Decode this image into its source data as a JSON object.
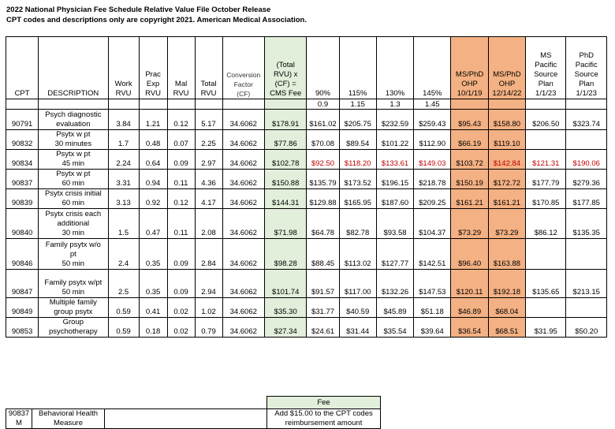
{
  "title_line1": "2022 National Physician Fee Schedule Relative Value File October Release",
  "title_line2": "CPT codes and descriptions only are copyright 2021. American Medical Association.",
  "headers": [
    [
      "CPT"
    ],
    [
      "DESCRIPTION"
    ],
    [
      "Work",
      "RVU"
    ],
    [
      "Prac",
      "Exp",
      "RVU"
    ],
    [
      "Mal",
      "RVU"
    ],
    [
      "Total",
      "RVU"
    ],
    [
      "Conversion",
      "Factor",
      "(CF)"
    ],
    [
      "(Total",
      "RVU) x",
      "(CF) =",
      "CMS Fee"
    ],
    [
      "90%"
    ],
    [
      "115%"
    ],
    [
      "130%"
    ],
    [
      "145%"
    ],
    [
      "MS/PhD",
      "OHP",
      "10/1/19"
    ],
    [
      "MS/PhD",
      "OHP",
      "12/14/22"
    ],
    [
      "MS",
      "Pacific",
      "Source",
      "Plan",
      "1/1/23"
    ],
    [
      "PhD",
      "Pacific",
      "Source",
      "Plan",
      "1/1/23"
    ]
  ],
  "multipliers": [
    "0.9",
    "1.15",
    "1.3",
    "1.45"
  ],
  "rows": [
    {
      "cpt": "90791",
      "desc": [
        "Psych diagnostic",
        "evaluation"
      ],
      "work": "3.84",
      "prac": "1.21",
      "mal": "0.12",
      "total": "5.17",
      "cf": "34.6062",
      "cms": "$178.91",
      "p90": "$161.02",
      "p115": "$205.75",
      "p130": "$232.59",
      "p145": "$259.43",
      "ohp19": "$95.43",
      "ohp22": "$158.80",
      "ms": "$206.50",
      "phd": "$323.74",
      "red": false
    },
    {
      "cpt": "90832",
      "desc": [
        "Psytx w pt",
        "30 minutes"
      ],
      "work": "1.7",
      "prac": "0.48",
      "mal": "0.07",
      "total": "2.25",
      "cf": "34.6062",
      "cms": "$77.86",
      "p90": "$70.08",
      "p115": "$89.54",
      "p130": "$101.22",
      "p145": "$112.90",
      "ohp19": "$66.19",
      "ohp22": "$119.10",
      "ms": "",
      "phd": "",
      "red": false
    },
    {
      "cpt": "90834",
      "desc": [
        "Psytx w pt",
        "45 min"
      ],
      "work": "2.24",
      "prac": "0.64",
      "mal": "0.09",
      "total": "2.97",
      "cf": "34.6062",
      "cms": "$102.78",
      "p90": "$92.50",
      "p115": "$118.20",
      "p130": "$133.61",
      "p145": "$149.03",
      "ohp19": "$103.72",
      "ohp22": "$142.84",
      "ms": "$121.31",
      "phd": "$190.06",
      "red": true
    },
    {
      "cpt": "90837",
      "desc": [
        "Psytx w pt",
        "60 min"
      ],
      "work": "3.31",
      "prac": "0.94",
      "mal": "0.11",
      "total": "4.36",
      "cf": "34.6062",
      "cms": "$150.88",
      "p90": "$135.79",
      "p115": "$173.52",
      "p130": "$196.15",
      "p145": "$218.78",
      "ohp19": "$150.19",
      "ohp22": "$172.72",
      "ms": "$177.79",
      "phd": "$279.36",
      "red": false
    },
    {
      "cpt": "90839",
      "desc": [
        "Psytx crisis initial",
        "60 min"
      ],
      "work": "3.13",
      "prac": "0.92",
      "mal": "0.12",
      "total": "4.17",
      "cf": "34.6062",
      "cms": "$144.31",
      "p90": "$129.88",
      "p115": "$165.95",
      "p130": "$187.60",
      "p145": "$209.25",
      "ohp19": "$161.21",
      "ohp22": "$161.21",
      "ms": "$170.85",
      "phd": "$177.85",
      "red": false
    },
    {
      "cpt": "90840",
      "desc": [
        "Psytx crisis each",
        "additional",
        "30 min"
      ],
      "work": "1.5",
      "prac": "0.47",
      "mal": "0.11",
      "total": "2.08",
      "cf": "34.6062",
      "cms": "$71.98",
      "p90": "$64.78",
      "p115": "$82.78",
      "p130": "$93.58",
      "p145": "$104.37",
      "ohp19": "$73.29",
      "ohp22": "$73.29",
      "ms": "$86.12",
      "phd": "$135.35",
      "red": false
    },
    {
      "cpt": "90846",
      "desc": [
        "Family psytx w/o",
        "pt",
        "50 min"
      ],
      "work": "2.4",
      "prac": "0.35",
      "mal": "0.09",
      "total": "2.84",
      "cf": "34.6062",
      "cms": "$98.28",
      "p90": "$88.45",
      "p115": "$113.02",
      "p130": "$127.77",
      "p145": "$142.51",
      "ohp19": "$96.40",
      "ohp22": "$163.88",
      "ms": "",
      "phd": "",
      "red": false
    },
    {
      "cpt": "90847",
      "desc": [
        "Family psytx w/pt",
        "50 min"
      ],
      "work": "2.5",
      "prac": "0.35",
      "mal": "0.09",
      "total": "2.94",
      "cf": "34.6062",
      "cms": "$101.74",
      "p90": "$91.57",
      "p115": "$117.00",
      "p130": "$132.26",
      "p145": "$147.53",
      "ohp19": "$120.11",
      "ohp22": "$192.18",
      "ms": "$135.65",
      "phd": "$213.15",
      "red": false
    },
    {
      "cpt": "90849",
      "desc": [
        "Multiple family",
        "group psytx"
      ],
      "work": "0.59",
      "prac": "0.41",
      "mal": "0.02",
      "total": "1.02",
      "cf": "34.6062",
      "cms": "$35.30",
      "p90": "$31.77",
      "p115": "$40.59",
      "p130": "$45.89",
      "p145": "$51.18",
      "ohp19": "$46.89",
      "ohp22": "$68.04",
      "ms": "",
      "phd": "",
      "red": false
    },
    {
      "cpt": "90853",
      "desc": [
        "Group",
        "psychotherapy"
      ],
      "work": "0.59",
      "prac": "0.18",
      "mal": "0.02",
      "total": "0.79",
      "cf": "34.6062",
      "cms": "$27.34",
      "p90": "$24.61",
      "p115": "$31.44",
      "p130": "$35.54",
      "p145": "$39.64",
      "ohp19": "$36.54",
      "ohp22": "$68.51",
      "ms": "$31.95",
      "phd": "$50.20",
      "red": false
    }
  ],
  "bh": {
    "fee_header": "Fee",
    "cpt_line1": "90837",
    "cpt_line2": "M",
    "desc_line1": "Behavioral Health",
    "desc_line2": "Measure",
    "fee_line1": "Add $15.00 to the CPT codes",
    "fee_line2": "reimbursement amount"
  },
  "colors": {
    "green": "#e2efda",
    "orange": "#f4b183",
    "red": "#c00000"
  }
}
